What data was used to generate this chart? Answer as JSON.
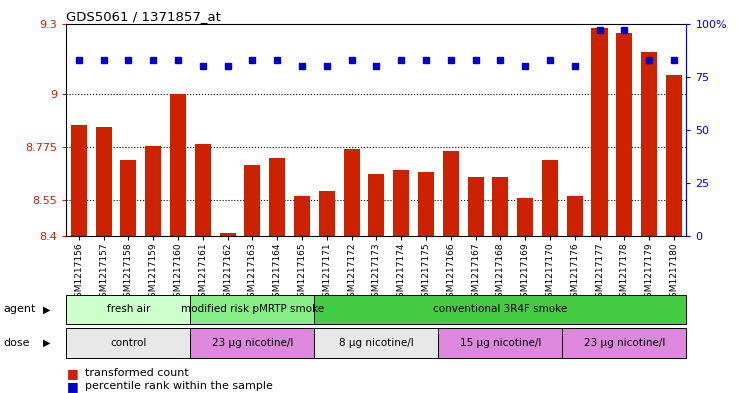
{
  "title": "GDS5061 / 1371857_at",
  "samples": [
    "GSM1217156",
    "GSM1217157",
    "GSM1217158",
    "GSM1217159",
    "GSM1217160",
    "GSM1217161",
    "GSM1217162",
    "GSM1217163",
    "GSM1217164",
    "GSM1217165",
    "GSM1217171",
    "GSM1217172",
    "GSM1217173",
    "GSM1217174",
    "GSM1217175",
    "GSM1217166",
    "GSM1217167",
    "GSM1217168",
    "GSM1217169",
    "GSM1217170",
    "GSM1217176",
    "GSM1217177",
    "GSM1217178",
    "GSM1217179",
    "GSM1217180"
  ],
  "bar_values": [
    8.87,
    8.86,
    8.72,
    8.78,
    9.0,
    8.79,
    8.41,
    8.7,
    8.73,
    8.57,
    8.59,
    8.77,
    8.66,
    8.68,
    8.67,
    8.76,
    8.65,
    8.65,
    8.56,
    8.72,
    8.57,
    9.28,
    9.26,
    9.18,
    9.08
  ],
  "percentile_values": [
    83,
    83,
    83,
    83,
    83,
    80,
    80,
    83,
    83,
    80,
    80,
    83,
    80,
    83,
    83,
    83,
    83,
    83,
    80,
    83,
    80,
    97,
    97,
    83,
    83
  ],
  "ylim_left": [
    8.4,
    9.3
  ],
  "ylim_right": [
    0,
    100
  ],
  "yticks_left": [
    8.4,
    8.55,
    8.775,
    9.0,
    9.3
  ],
  "ytick_labels_left": [
    "8.4",
    "8.55",
    "8.775",
    "9",
    "9.3"
  ],
  "yticks_right": [
    0,
    25,
    50,
    75,
    100
  ],
  "ytick_labels_right": [
    "0",
    "25",
    "50",
    "75",
    "100%"
  ],
  "bar_color": "#cc2200",
  "dot_color": "#0000cc",
  "grid_levels": [
    8.55,
    8.775,
    9.0
  ],
  "agent_groups": [
    {
      "label": "fresh air",
      "start": 0,
      "end": 5,
      "color": "#ccffcc"
    },
    {
      "label": "modified risk pMRTP smoke",
      "start": 5,
      "end": 10,
      "color": "#88ee88"
    },
    {
      "label": "conventional 3R4F smoke",
      "start": 10,
      "end": 25,
      "color": "#44cc44"
    }
  ],
  "dose_groups": [
    {
      "label": "control",
      "start": 0,
      "end": 5,
      "color": "#e8e8e8"
    },
    {
      "label": "23 μg nicotine/l",
      "start": 5,
      "end": 10,
      "color": "#dd88dd"
    },
    {
      "label": "8 μg nicotine/l",
      "start": 10,
      "end": 15,
      "color": "#e8e8e8"
    },
    {
      "label": "15 μg nicotine/l",
      "start": 15,
      "end": 20,
      "color": "#dd88dd"
    },
    {
      "label": "23 μg nicotine/l",
      "start": 20,
      "end": 25,
      "color": "#dd88dd"
    }
  ],
  "legend_items": [
    {
      "label": "transformed count",
      "color": "#cc2200"
    },
    {
      "label": "percentile rank within the sample",
      "color": "#0000cc"
    }
  ]
}
